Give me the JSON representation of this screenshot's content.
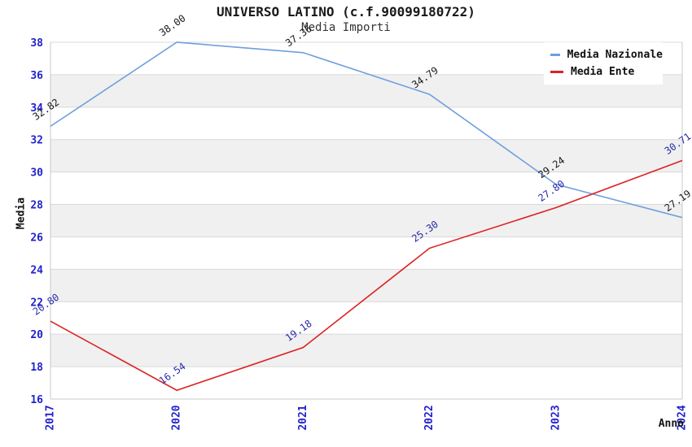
{
  "title": "UNIVERSO LATINO (c.f.90099180722)",
  "subtitle": "Media Importi",
  "chart_data": {
    "type": "line",
    "categories": [
      "2017",
      "2020",
      "2021",
      "2022",
      "2023",
      "2024"
    ],
    "series": [
      {
        "name": "Media Nazionale",
        "color": "#6e9fdd",
        "label_color": "#1a1a1a",
        "values": [
          32.82,
          38.0,
          37.36,
          34.79,
          29.24,
          27.19
        ]
      },
      {
        "name": "Media Ente",
        "color": "#dd2222",
        "label_color": "#2a2aae",
        "values": [
          20.8,
          16.54,
          19.18,
          25.3,
          27.8,
          30.71
        ]
      }
    ],
    "xlabel": "Anno",
    "ylabel": "Media",
    "ylim": [
      16,
      38
    ],
    "ytick_step": 2,
    "grid": true,
    "legend_position": "top-right",
    "colors": {
      "tick_label": "#2222cc",
      "band": "#f0f0f0",
      "grid_line": "#d9d9d9",
      "axis_border": "#c8c8c8"
    }
  }
}
